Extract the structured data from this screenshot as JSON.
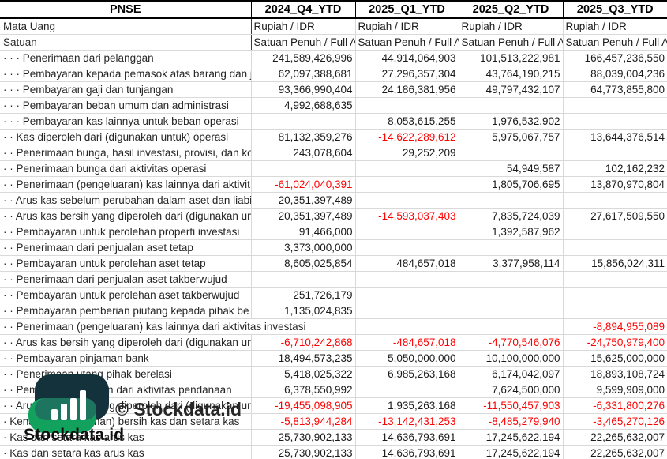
{
  "table": {
    "title": "PNSE",
    "columns": [
      "2024_Q4_YTD",
      "2025_Q1_YTD",
      "2025_Q2_YTD",
      "2025_Q3_YTD"
    ],
    "negative_color": "#ff0000",
    "meta_rows": [
      {
        "label": "Mata Uang",
        "values": [
          "Rupiah / IDR",
          "Rupiah / IDR",
          "Rupiah / IDR",
          "Rupiah / IDR"
        ]
      },
      {
        "label": "Satuan",
        "values": [
          "Satuan Penuh / Full A",
          "Satuan Penuh / Full A",
          "Satuan Penuh / Full A",
          "Satuan Penuh / Full A"
        ]
      }
    ],
    "rows": [
      {
        "label": "· · · Penerimaan dari pelanggan",
        "values": [
          "241,589,426,996",
          "44,914,064,903",
          "101,513,222,981",
          "166,457,236,550"
        ]
      },
      {
        "label": "· · · Pembayaran kepada pemasok atas barang dan ja",
        "values": [
          "62,097,388,681",
          "27,296,357,304",
          "43,764,190,215",
          "88,039,004,236"
        ]
      },
      {
        "label": "· · · Pembayaran gaji dan tunjangan",
        "values": [
          "93,366,990,404",
          "24,186,381,956",
          "49,797,432,107",
          "64,773,855,800"
        ]
      },
      {
        "label": "· · · Pembayaran beban umum dan administrasi",
        "values": [
          "4,992,688,635",
          "",
          "",
          ""
        ]
      },
      {
        "label": "· · · Pembayaran kas lainnya untuk beban operasi",
        "values": [
          "",
          "8,053,615,255",
          "1,976,532,902",
          ""
        ]
      },
      {
        "label": "· · Kas diperoleh dari (digunakan untuk) operasi",
        "values": [
          "81,132,359,276",
          "-14,622,289,612",
          "5,975,067,757",
          "13,644,376,514"
        ]
      },
      {
        "label": "· · Penerimaan bunga, hasil investasi, provisi, dan ko",
        "values": [
          "243,078,604",
          "29,252,209",
          "",
          ""
        ]
      },
      {
        "label": "· · Penerimaan bunga dari aktivitas operasi",
        "values": [
          "",
          "",
          "54,949,587",
          "102,162,232"
        ]
      },
      {
        "label": "· · Penerimaan (pengeluaran) kas lainnya dari aktivit",
        "values": [
          "-61,024,040,391",
          "",
          "1,805,706,695",
          "13,870,970,804"
        ]
      },
      {
        "label": "· · Arus kas sebelum perubahan dalam aset dan liabi",
        "values": [
          "20,351,397,489",
          "",
          "",
          ""
        ]
      },
      {
        "label": "· · Arus kas bersih yang diperoleh dari (digunakan un",
        "values": [
          "20,351,397,489",
          "-14,593,037,403",
          "7,835,724,039",
          "27,617,509,550"
        ]
      },
      {
        "label": "· · Pembayaran untuk perolehan properti investasi",
        "values": [
          "91,466,000",
          "",
          "1,392,587,962",
          ""
        ]
      },
      {
        "label": "· · Penerimaan dari penjualan aset tetap",
        "values": [
          "3,373,000,000",
          "",
          "",
          ""
        ]
      },
      {
        "label": "· · Pembayaran untuk perolehan aset tetap",
        "values": [
          "8,605,025,854",
          "484,657,018",
          "3,377,958,114",
          "15,856,024,311"
        ]
      },
      {
        "label": "· · Penerimaan dari penjualan aset takberwujud",
        "values": [
          "",
          "",
          "",
          ""
        ]
      },
      {
        "label": "· · Pembayaran untuk perolehan aset takberwujud",
        "values": [
          "251,726,179",
          "",
          "",
          ""
        ]
      },
      {
        "label": "· · Pembayaran pemberian piutang kepada pihak be",
        "values": [
          "1,135,024,835",
          "",
          "",
          ""
        ]
      },
      {
        "label": "· · Penerimaan (pengeluaran) kas lainnya dari aktivitas investasi",
        "overflow": true,
        "values": [
          "",
          "",
          "",
          "-8,894,955,089"
        ]
      },
      {
        "label": "· · Arus kas bersih yang diperoleh dari (digunakan un",
        "values": [
          "-6,710,242,868",
          "-484,657,018",
          "-4,770,546,076",
          "-24,750,979,400"
        ]
      },
      {
        "label": "· · Pembayaran pinjaman bank",
        "values": [
          "18,494,573,235",
          "5,050,000,000",
          "10,100,000,000",
          "15,625,000,000"
        ]
      },
      {
        "label": "· · Penerimaan utang pihak berelasi",
        "values": [
          "5,418,025,322",
          "6,985,263,168",
          "6,174,042,097",
          "18,893,108,724"
        ]
      },
      {
        "label": "· · Pembayaran dividen dari aktivitas pendanaan",
        "values": [
          "6,378,550,992",
          "",
          "7,624,500,000",
          "9,599,909,000"
        ]
      },
      {
        "label": "· · Arus kas bersih yang diperoleh dari (digunakan un",
        "values": [
          "-19,455,098,905",
          "1,935,263,168",
          "-11,550,457,903",
          "-6,331,800,276"
        ]
      },
      {
        "label": "· Kenaikan (penurunan) bersih kas dan setara kas",
        "values": [
          "-5,813,944,284",
          "-13,142,431,253",
          "-8,485,279,940",
          "-3,465,270,126"
        ]
      },
      {
        "label": "· Kas dan setara kas arus kas",
        "values": [
          "25,730,902,133",
          "14,636,793,691",
          "17,245,622,194",
          "22,265,632,007"
        ]
      },
      {
        "label": "· Kas dan setara kas arus kas",
        "values": [
          "25,730,902,133",
          "14,636,793,691",
          "17,245,622,194",
          "22,265,632,007"
        ]
      }
    ]
  },
  "watermark": {
    "center_text": "© Stockdata.id",
    "brand_text": "Stockdata.id",
    "logo_colors": {
      "dark": "#14323c",
      "teal": "#1d7560",
      "green": "#12a25e",
      "bars": "#ffffff"
    }
  }
}
